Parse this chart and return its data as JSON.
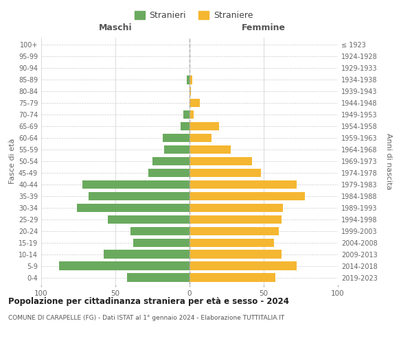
{
  "age_groups": [
    "0-4",
    "5-9",
    "10-14",
    "15-19",
    "20-24",
    "25-29",
    "30-34",
    "35-39",
    "40-44",
    "45-49",
    "50-54",
    "55-59",
    "60-64",
    "65-69",
    "70-74",
    "75-79",
    "80-84",
    "85-89",
    "90-94",
    "95-99",
    "100+"
  ],
  "birth_years": [
    "2019-2023",
    "2014-2018",
    "2009-2013",
    "2004-2008",
    "1999-2003",
    "1994-1998",
    "1989-1993",
    "1984-1988",
    "1979-1983",
    "1974-1978",
    "1969-1973",
    "1964-1968",
    "1959-1963",
    "1954-1958",
    "1949-1953",
    "1944-1948",
    "1939-1943",
    "1934-1938",
    "1929-1933",
    "1924-1928",
    "≤ 1923"
  ],
  "males": [
    42,
    88,
    58,
    38,
    40,
    55,
    76,
    68,
    72,
    28,
    25,
    17,
    18,
    6,
    4,
    0,
    0,
    2,
    0,
    0,
    0
  ],
  "females": [
    58,
    72,
    62,
    57,
    60,
    62,
    63,
    78,
    72,
    48,
    42,
    28,
    15,
    20,
    3,
    7,
    1,
    2,
    0,
    0,
    0
  ],
  "male_color": "#6aaa5e",
  "female_color": "#f5b731",
  "background_color": "#ffffff",
  "grid_color": "#cccccc",
  "title": "Popolazione per cittadinanza straniera per età e sesso - 2024",
  "subtitle": "COMUNE DI CARAPELLE (FG) - Dati ISTAT al 1° gennaio 2024 - Elaborazione TUTTITALIA.IT",
  "legend_male": "Stranieri",
  "legend_female": "Straniere",
  "xlabel_left": "Maschi",
  "xlabel_right": "Femmine",
  "ylabel_left": "Fasce di età",
  "ylabel_right": "Anni di nascita",
  "xlim": 100
}
